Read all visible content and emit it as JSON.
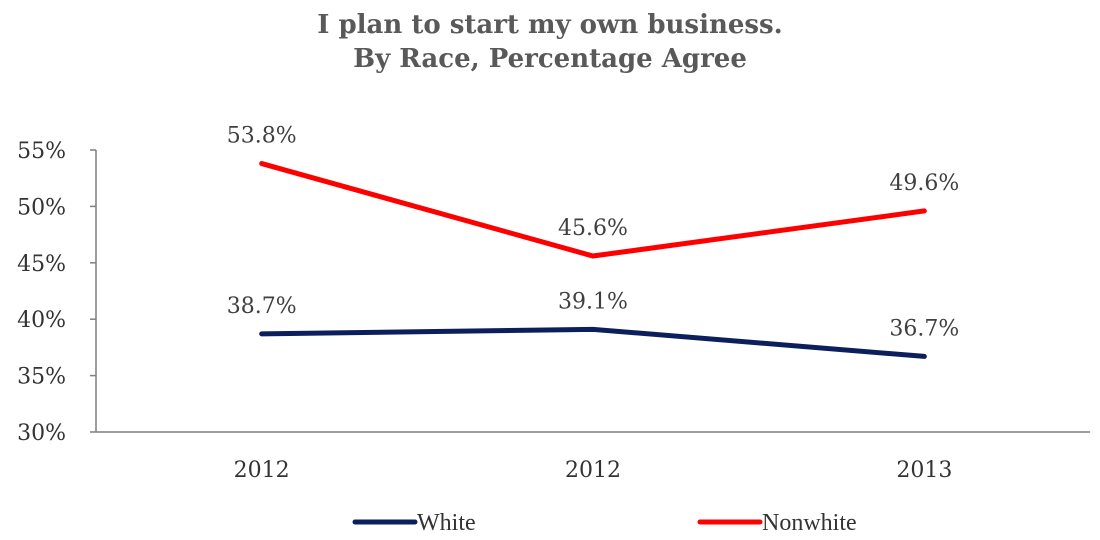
{
  "chart_data": {
    "type": "line",
    "title": "I plan to start my own business.",
    "subtitle": "By Race, Percentage Agree",
    "categories": [
      "2012",
      "2012",
      "2013"
    ],
    "series": [
      {
        "name": "White",
        "values": [
          38.7,
          39.1,
          36.7
        ],
        "labels": [
          "38.7%",
          "39.1%",
          "36.7%"
        ],
        "color": "#0b1f5c"
      },
      {
        "name": "Nonwhite",
        "values": [
          53.8,
          45.6,
          49.6
        ],
        "labels": [
          "53.8%",
          "45.6%",
          "49.6%"
        ],
        "color": "#ff0000"
      }
    ],
    "ylim": [
      30,
      55
    ],
    "yticks": [
      "30%",
      "35%",
      "40%",
      "45%",
      "50%",
      "55%"
    ],
    "grid": false,
    "legend_position": "bottom"
  }
}
